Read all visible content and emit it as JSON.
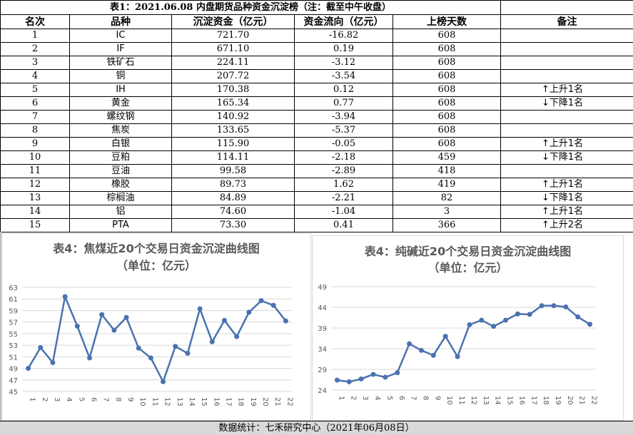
{
  "table": {
    "title": "表1：2021.06.08 内盘期货品种资金沉淀榜（注：截至中午收盘）",
    "headers": [
      "名次",
      "品种",
      "沉淀资金（亿元）",
      "资金流向（亿元）",
      "上榜天数",
      "备注"
    ],
    "rows": [
      {
        "rank": "1",
        "name": "IC",
        "amount": "721.70",
        "flow": "-16.82",
        "days": "608",
        "note": ""
      },
      {
        "rank": "2",
        "name": "IF",
        "amount": "671.10",
        "flow": "0.19",
        "days": "608",
        "note": ""
      },
      {
        "rank": "3",
        "name": "铁矿石",
        "amount": "224.11",
        "flow": "-3.12",
        "days": "608",
        "note": ""
      },
      {
        "rank": "4",
        "name": "铜",
        "amount": "207.72",
        "flow": "-3.54",
        "days": "608",
        "note": ""
      },
      {
        "rank": "5",
        "name": "IH",
        "amount": "170.38",
        "flow": "0.12",
        "days": "608",
        "note": "↑上升1名"
      },
      {
        "rank": "6",
        "name": "黄金",
        "amount": "165.34",
        "flow": "0.77",
        "days": "608",
        "note": "↓下降1名"
      },
      {
        "rank": "7",
        "name": "螺纹钢",
        "amount": "140.92",
        "flow": "-3.94",
        "days": "608",
        "note": ""
      },
      {
        "rank": "8",
        "name": "焦炭",
        "amount": "133.65",
        "flow": "-5.37",
        "days": "608",
        "note": ""
      },
      {
        "rank": "9",
        "name": "白银",
        "amount": "115.90",
        "flow": "-0.05",
        "days": "608",
        "note": "↑上升1名"
      },
      {
        "rank": "10",
        "name": "豆粕",
        "amount": "114.11",
        "flow": "-2.18",
        "days": "459",
        "note": "↓下降1名"
      },
      {
        "rank": "11",
        "name": "豆油",
        "amount": "99.58",
        "flow": "-2.89",
        "days": "418",
        "note": ""
      },
      {
        "rank": "12",
        "name": "橡胶",
        "amount": "89.73",
        "flow": "1.62",
        "days": "419",
        "note": "↑上升1名"
      },
      {
        "rank": "13",
        "name": "棕榈油",
        "amount": "84.89",
        "flow": "-2.21",
        "days": "82",
        "note": "↓下降1名"
      },
      {
        "rank": "14",
        "name": "铝",
        "amount": "74.60",
        "flow": "-1.04",
        "days": "3",
        "note": "↑上升1名"
      },
      {
        "rank": "15",
        "name": "PTA",
        "amount": "73.30",
        "flow": "0.41",
        "days": "366",
        "note": "↑上升2名"
      }
    ]
  },
  "colors": {
    "line": "#4a72b0",
    "grid": "#d9d9d9",
    "axis_text": "#595959",
    "footer_bg": "#d9d9d9"
  },
  "chart_data": [
    {
      "type": "line",
      "title": "表4：焦煤近20个交易日资金沉淀曲线图",
      "subtitle": "（单位：亿元）",
      "x": [
        "1",
        "2",
        "3",
        "4",
        "5",
        "6",
        "7",
        "8",
        "9",
        "10",
        "11",
        "12",
        "13",
        "14",
        "15",
        "16",
        "17",
        "18",
        "19",
        "20",
        "21",
        "22"
      ],
      "values": [
        49.0,
        52.6,
        50.0,
        61.4,
        56.3,
        50.8,
        58.3,
        55.6,
        57.8,
        52.5,
        50.8,
        46.7,
        52.8,
        51.6,
        59.3,
        53.6,
        57.3,
        54.5,
        58.7,
        60.7,
        59.9,
        57.2
      ],
      "ylim": [
        45,
        63
      ],
      "yticks": [
        45,
        47,
        49,
        51,
        53,
        55,
        57,
        59,
        61,
        63
      ],
      "grid": true
    },
    {
      "type": "line",
      "title": "表4：纯碱近20个交易日资金沉淀曲线图",
      "subtitle": "（单位：亿元）",
      "x": [
        "1",
        "2",
        "3",
        "4",
        "5",
        "6",
        "7",
        "8",
        "9",
        "10",
        "11",
        "12",
        "13",
        "14",
        "15",
        "16",
        "17",
        "18",
        "19",
        "20",
        "21",
        "22"
      ],
      "values": [
        26.4,
        26.0,
        26.7,
        27.8,
        27.1,
        28.2,
        35.2,
        33.6,
        32.4,
        37.0,
        32.1,
        39.8,
        40.9,
        39.4,
        40.9,
        42.4,
        42.3,
        44.4,
        44.4,
        44.1,
        41.7,
        39.9
      ],
      "ylim": [
        24,
        49
      ],
      "yticks": [
        24,
        29,
        34,
        39,
        44,
        49
      ],
      "grid": true
    }
  ],
  "footer": "数据统计：七禾研究中心（2021年06月08日）"
}
